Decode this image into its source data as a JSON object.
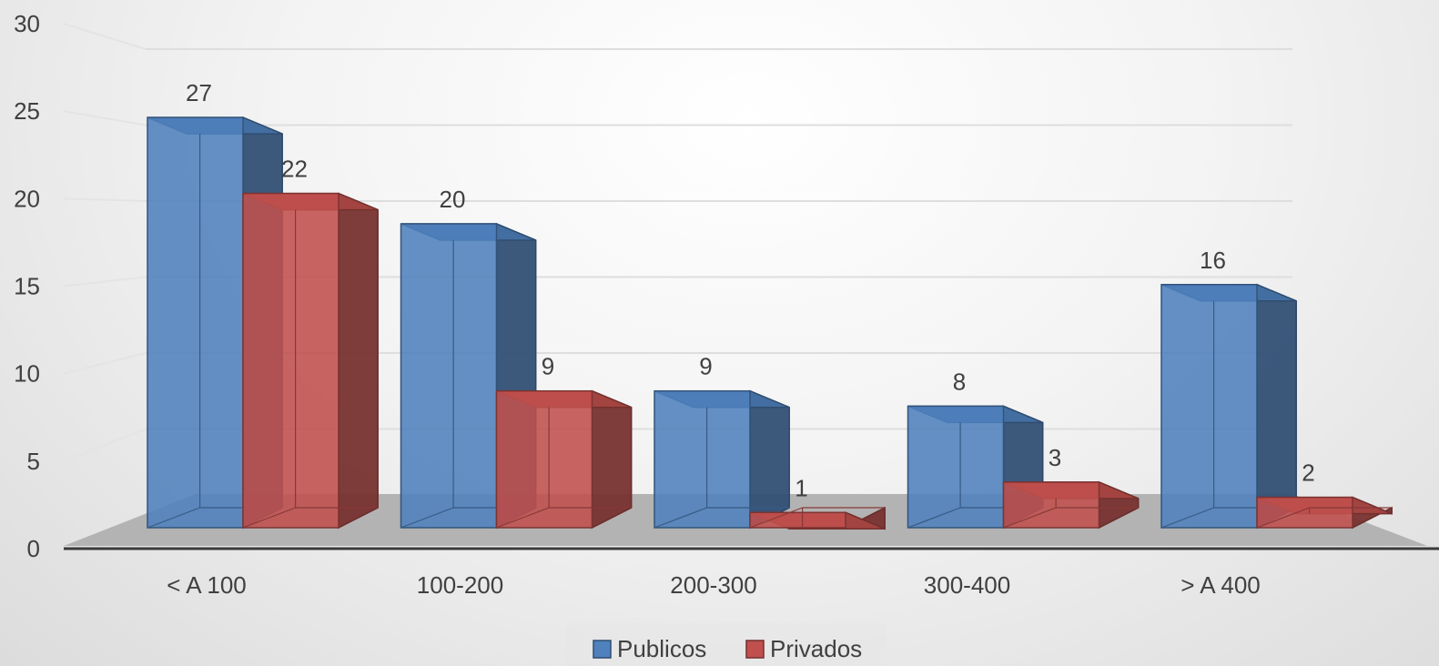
{
  "chart_data": {
    "type": "bar",
    "categories": [
      "< A 100",
      "100-200",
      "200-300",
      "300-400",
      "> A 400"
    ],
    "series": [
      {
        "name": "Publicos",
        "values": [
          27,
          20,
          9,
          8,
          16
        ],
        "color": "#4f81bd"
      },
      {
        "name": "Privados",
        "values": [
          22,
          9,
          1,
          3,
          2
        ],
        "color": "#c0504d"
      }
    ],
    "y_ticks": [
      "0",
      "5",
      "10",
      "15",
      "20",
      "25",
      "30"
    ],
    "ylim": [
      0,
      30
    ],
    "grid": true,
    "legend": "bottom-center",
    "style": "3d-clustered-column"
  }
}
